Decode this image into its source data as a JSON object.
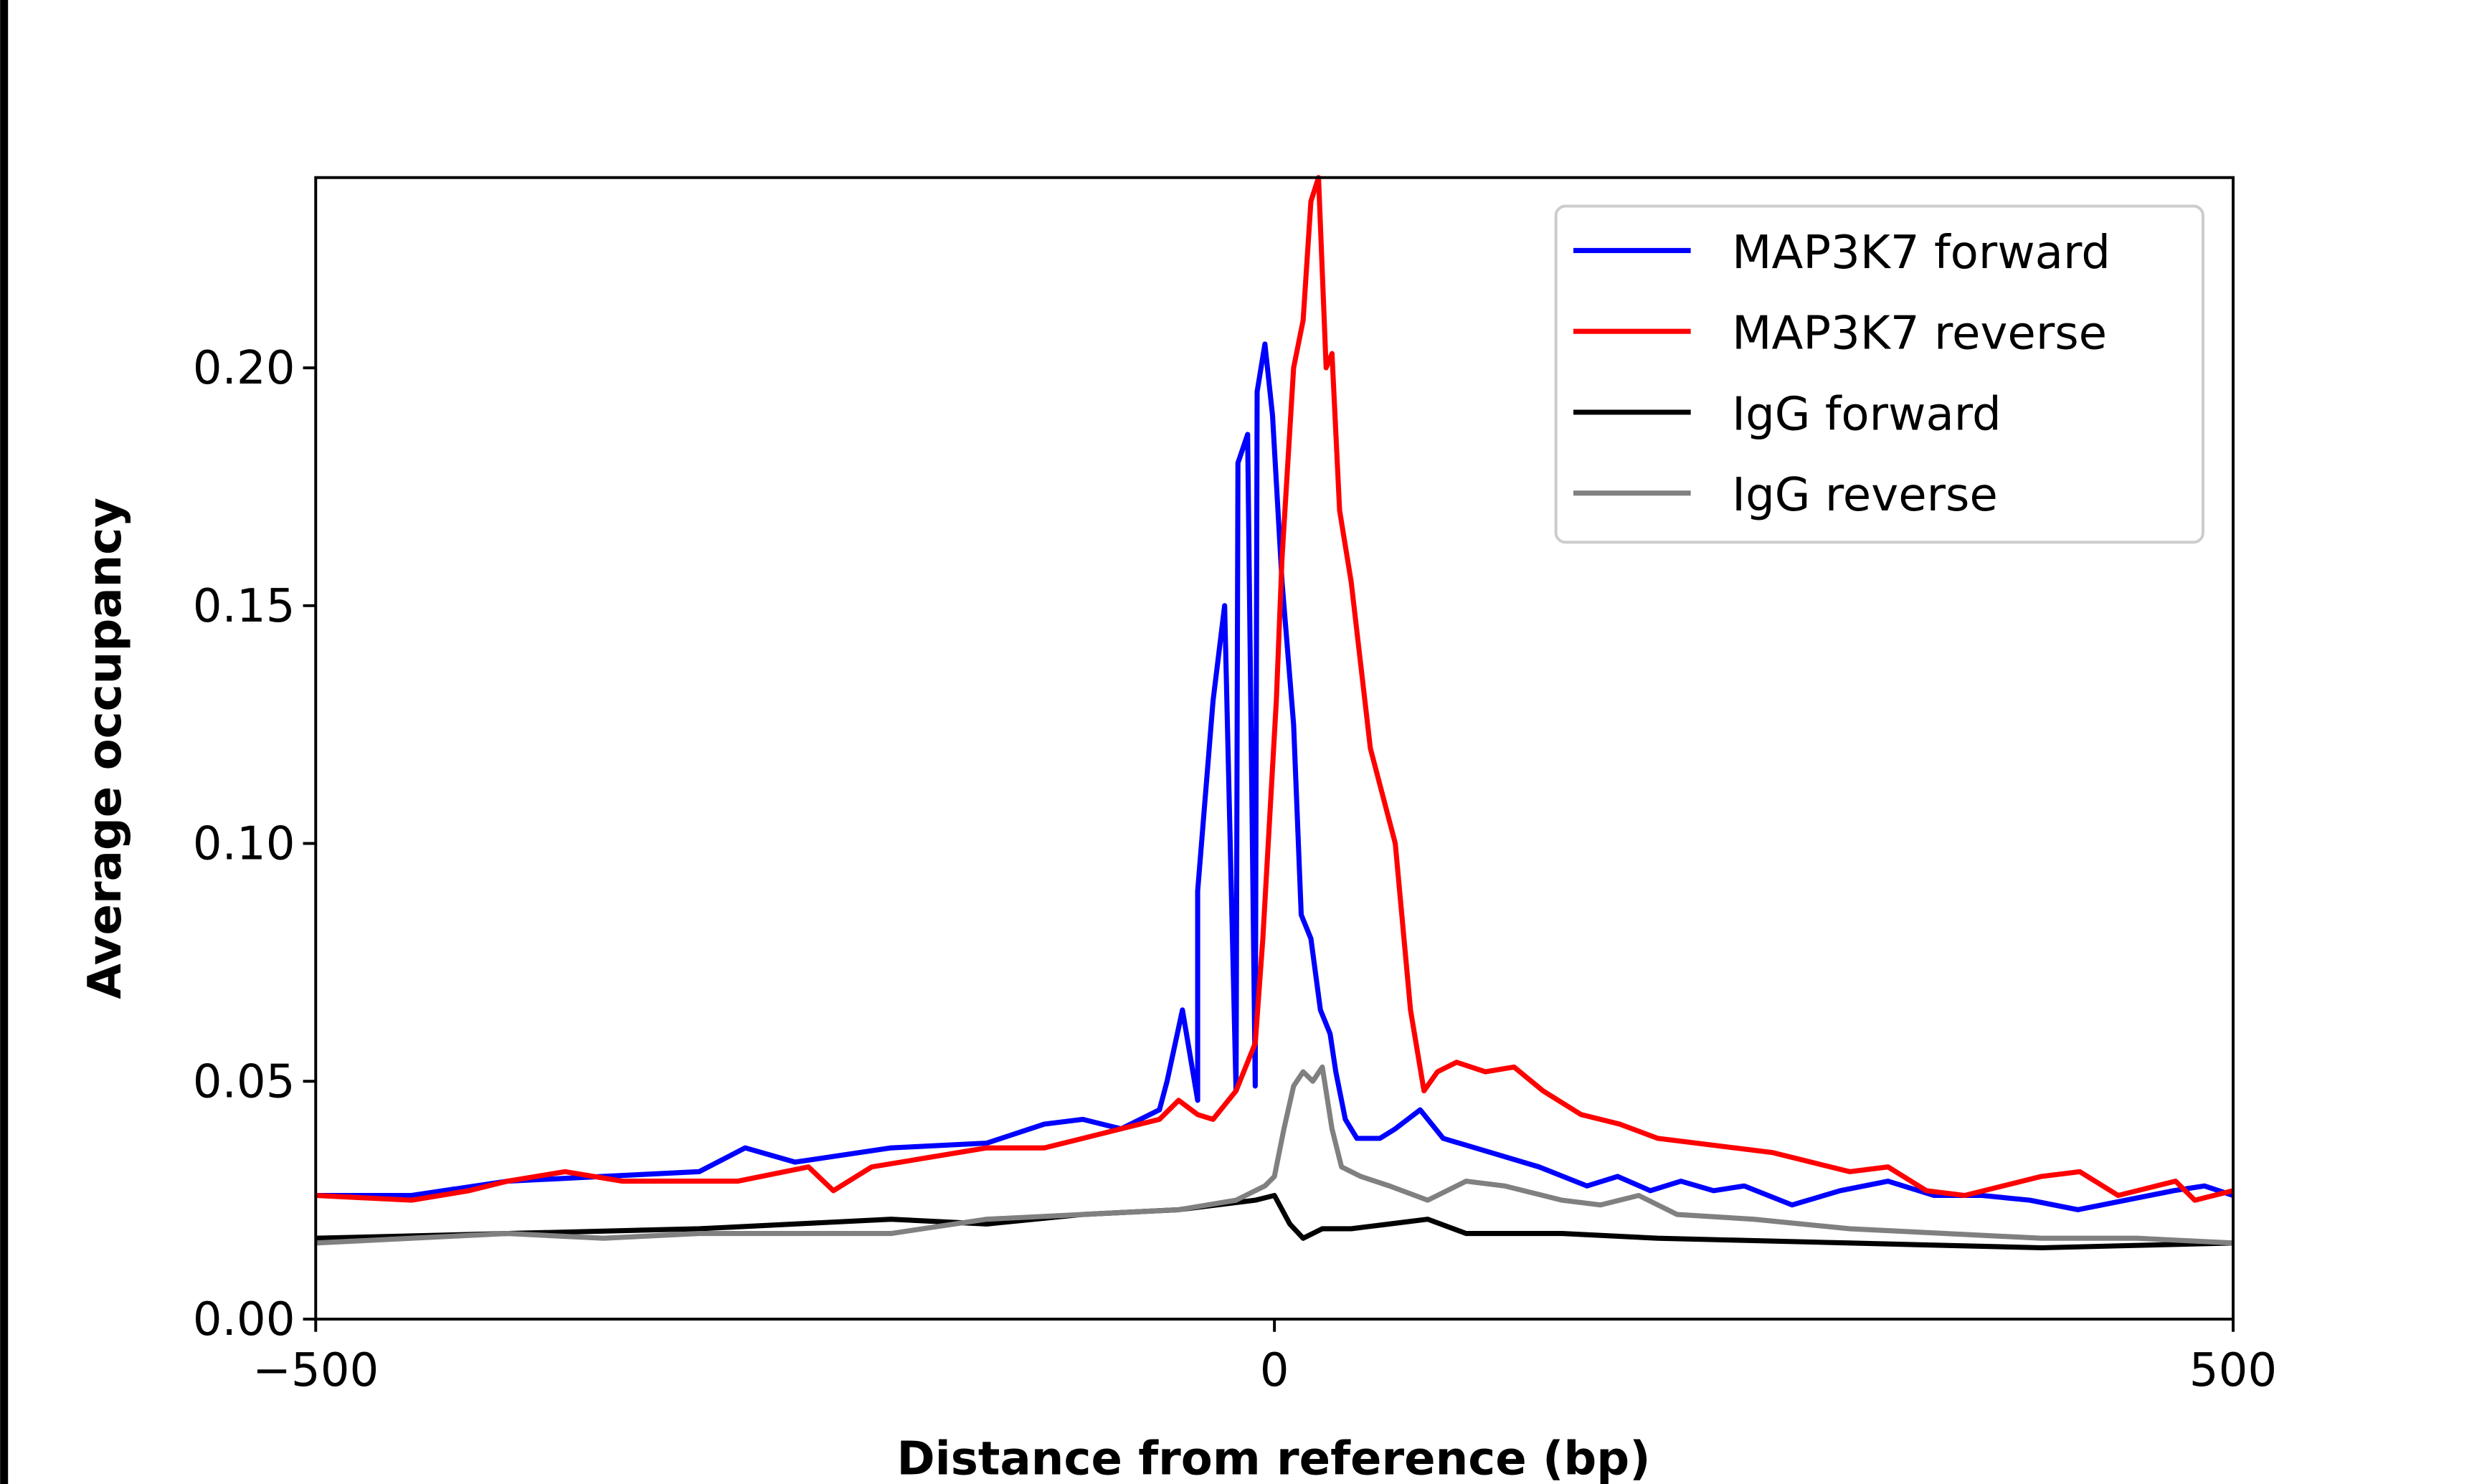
{
  "chart_data": {
    "type": "line",
    "title": "",
    "xlabel": "Distance from reference (bp)",
    "ylabel": "Average occupancy",
    "xlim": [
      -500,
      500
    ],
    "ylim": [
      0,
      0.24
    ],
    "xticks": [
      -500,
      0,
      500
    ],
    "xtick_labels": [
      "−500",
      "0",
      "500"
    ],
    "yticks": [
      0.0,
      0.05,
      0.1,
      0.15,
      0.2
    ],
    "ytick_labels": [
      "0.00",
      "0.05",
      "0.10",
      "0.15",
      "0.20"
    ],
    "grid": false,
    "legend_position": "top-right",
    "series": [
      {
        "name": "MAP3K7 forward",
        "color": "#0000ff",
        "x": [
          -500,
          -450,
          -400,
          -350,
          -300,
          -276,
          -250,
          -200,
          -150,
          -120,
          -100,
          -80,
          -60,
          -40,
          -20,
          -10,
          -56,
          -48,
          -40,
          -32,
          -26,
          -19,
          -14,
          -9,
          -5,
          -1,
          4,
          10,
          14,
          19,
          24,
          29,
          32,
          37,
          43,
          55,
          63,
          76,
          88,
          113,
          138,
          163,
          179,
          196,
          212,
          229,
          245,
          270,
          295,
          320,
          344,
          369,
          394,
          419,
          444,
          469,
          485,
          500
        ],
        "y": [
          0.026,
          0.026,
          0.029,
          0.03,
          0.031,
          0.036,
          0.033,
          0.036,
          0.037,
          0.041,
          0.042,
          0.04,
          0.044,
          0.046,
          0.048,
          0.049,
          0.05,
          0.065,
          0.09,
          0.13,
          0.15,
          0.18,
          0.186,
          0.195,
          0.205,
          0.19,
          0.155,
          0.125,
          0.085,
          0.08,
          0.065,
          0.06,
          0.052,
          0.042,
          0.038,
          0.038,
          0.04,
          0.044,
          0.038,
          0.035,
          0.032,
          0.028,
          0.03,
          0.027,
          0.029,
          0.027,
          0.028,
          0.024,
          0.027,
          0.029,
          0.026,
          0.026,
          0.025,
          0.023,
          0.025,
          0.027,
          0.028,
          0.026
        ]
      },
      {
        "name": "MAP3K7 reverse",
        "color": "#ff0000",
        "x": [
          -500,
          -450,
          -420,
          -400,
          -370,
          -340,
          -310,
          -280,
          -243,
          -230,
          -210,
          -180,
          -150,
          -120,
          -100,
          -80,
          -60,
          -50,
          -40,
          -32,
          -20,
          -10,
          -6,
          1,
          4,
          10,
          15,
          19,
          23,
          27,
          30,
          34,
          40,
          50,
          63,
          71,
          78,
          85,
          95,
          110,
          125,
          140,
          160,
          180,
          200,
          220,
          240,
          260,
          280,
          300,
          320,
          340,
          360,
          380,
          400,
          420,
          440,
          460,
          470,
          480,
          500
        ],
        "y": [
          0.026,
          0.025,
          0.027,
          0.029,
          0.031,
          0.029,
          0.029,
          0.029,
          0.032,
          0.027,
          0.032,
          0.034,
          0.036,
          0.036,
          0.038,
          0.04,
          0.042,
          0.046,
          0.043,
          0.042,
          0.048,
          0.058,
          0.08,
          0.13,
          0.16,
          0.2,
          0.21,
          0.235,
          0.24,
          0.2,
          0.203,
          0.17,
          0.155,
          0.12,
          0.1,
          0.065,
          0.048,
          0.052,
          0.054,
          0.052,
          0.053,
          0.048,
          0.043,
          0.041,
          0.038,
          0.037,
          0.036,
          0.035,
          0.033,
          0.031,
          0.032,
          0.027,
          0.026,
          0.028,
          0.03,
          0.031,
          0.026,
          0.028,
          0.029,
          0.025,
          0.027
        ]
      },
      {
        "name": "IgG forward",
        "color": "#000000",
        "x": [
          -500,
          -400,
          -300,
          -250,
          -200,
          -150,
          -100,
          -50,
          -10,
          0,
          8,
          15,
          25,
          40,
          60,
          80,
          100,
          150,
          200,
          300,
          400,
          500
        ],
        "y": [
          0.017,
          0.018,
          0.019,
          0.02,
          0.021,
          0.02,
          0.022,
          0.023,
          0.025,
          0.026,
          0.02,
          0.017,
          0.019,
          0.019,
          0.02,
          0.021,
          0.018,
          0.018,
          0.017,
          0.016,
          0.015,
          0.016
        ]
      },
      {
        "name": "IgG reverse",
        "color": "#808080",
        "x": [
          -500,
          -450,
          -400,
          -350,
          -300,
          -250,
          -200,
          -150,
          -100,
          -50,
          -20,
          -5,
          0,
          5,
          10,
          15,
          20,
          25,
          30,
          35,
          45,
          60,
          80,
          100,
          120,
          150,
          170,
          190,
          210,
          250,
          300,
          350,
          400,
          450,
          500
        ],
        "y": [
          0.016,
          0.017,
          0.018,
          0.017,
          0.018,
          0.018,
          0.018,
          0.021,
          0.022,
          0.023,
          0.025,
          0.028,
          0.03,
          0.04,
          0.049,
          0.052,
          0.05,
          0.053,
          0.04,
          0.032,
          0.03,
          0.028,
          0.025,
          0.029,
          0.028,
          0.025,
          0.024,
          0.026,
          0.022,
          0.021,
          0.019,
          0.018,
          0.017,
          0.017,
          0.016
        ]
      }
    ]
  }
}
